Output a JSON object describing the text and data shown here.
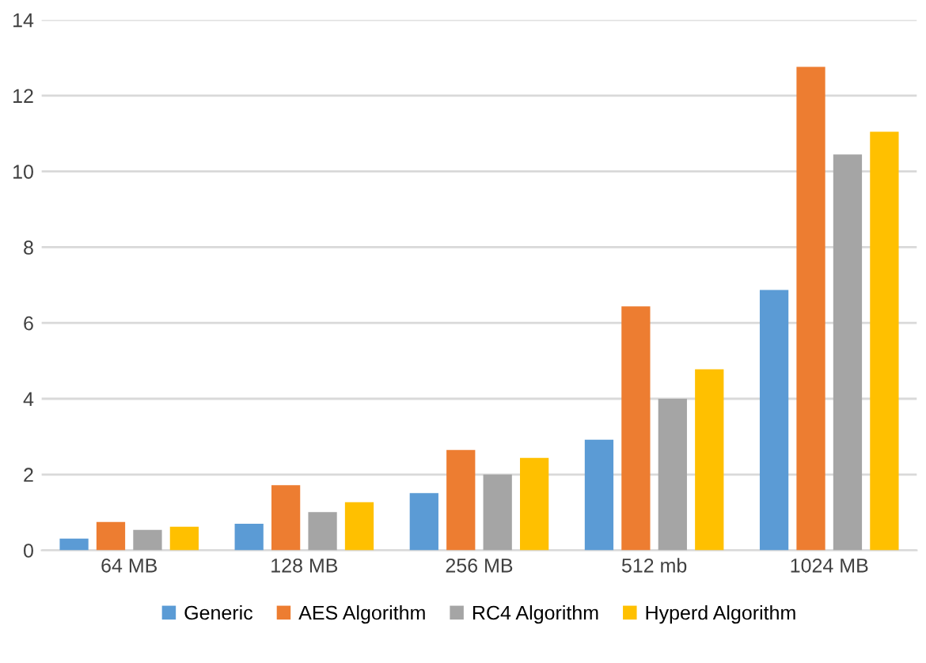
{
  "chart_data": {
    "type": "bar",
    "categories": [
      "64 MB",
      "128 MB",
      "256 MB",
      "512 mb",
      "1024 MB"
    ],
    "series": [
      {
        "name": "Generic",
        "color": "#5b9bd5",
        "values": [
          0.31,
          0.7,
          1.51,
          2.92,
          6.87
        ]
      },
      {
        "name": "AES Algorithm",
        "color": "#ed7d31",
        "values": [
          0.75,
          1.72,
          2.65,
          6.44,
          12.76
        ]
      },
      {
        "name": "RC4 Algorithm",
        "color": "#a5a5a5",
        "values": [
          0.54,
          1.01,
          2.0,
          4.0,
          10.45
        ]
      },
      {
        "name": "Hyperd Algorithm",
        "color": "#ffc000",
        "values": [
          0.62,
          1.27,
          2.44,
          4.78,
          11.05
        ]
      }
    ],
    "ylim": [
      0,
      14
    ],
    "yticks": [
      0,
      2,
      4,
      6,
      8,
      10,
      12,
      14
    ],
    "grid": "y",
    "legend": "bottom"
  }
}
